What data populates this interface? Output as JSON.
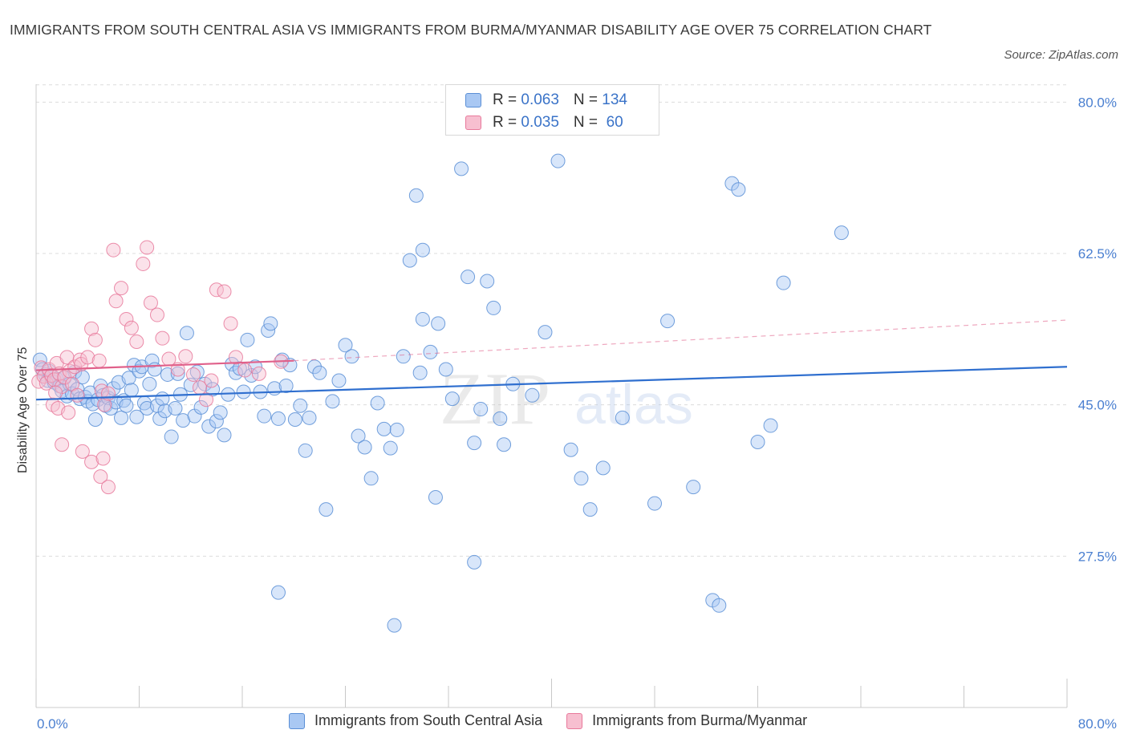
{
  "title": "IMMIGRANTS FROM SOUTH CENTRAL ASIA VS IMMIGRANTS FROM BURMA/MYANMAR DISABILITY AGE OVER 75 CORRELATION CHART",
  "source": "Source: ZipAtlas.com",
  "watermark": {
    "zip": "ZIP",
    "atlas": "atlas"
  },
  "legend": {
    "series1": {
      "r_label": "R = ",
      "r_value": "0.063",
      "n_label": "N = ",
      "n_value": "134"
    },
    "series2": {
      "r_label": "R = ",
      "r_value": "0.035",
      "n_label": "N = ",
      "n_value": " 60"
    }
  },
  "bottom_legend": {
    "series1": "Immigrants from South Central Asia",
    "series2": "Immigrants from Burma/Myanmar"
  },
  "colors": {
    "blue_fill": "#a9c8f3",
    "blue_stroke": "#5b8fd6",
    "blue_line": "#2f6fcf",
    "pink_fill": "#f7bfd0",
    "pink_stroke": "#e8799b",
    "pink_line": "#e0608a",
    "tick": "#4a7fd0",
    "grid": "#dcdcdc"
  },
  "chart_data": {
    "type": "scatter",
    "title": "IMMIGRANTS FROM SOUTH CENTRAL ASIA VS IMMIGRANTS FROM BURMA/MYANMAR DISABILITY AGE OVER 75 CORRELATION CHART",
    "xlabel": "",
    "ylabel": "Disability Age Over 75",
    "xlim": [
      0,
      80
    ],
    "ylim": [
      10,
      83
    ],
    "x_tick_labels": [
      "0.0%",
      "80.0%"
    ],
    "y_ticks": [
      27.5,
      45.0,
      62.5,
      80.0
    ],
    "y_tick_labels": [
      "27.5%",
      "45.0%",
      "62.5%",
      "80.0%"
    ],
    "grid": true,
    "series": [
      {
        "name": "Immigrants from South Central Asia",
        "R": 0.063,
        "N": 134,
        "trend": {
          "x0": 0,
          "y0": 45.6,
          "x1": 80,
          "y1": 49.4,
          "dashed_from": null
        },
        "points": [
          [
            0.3,
            50.2
          ],
          [
            0.5,
            49.1
          ],
          [
            0.7,
            48.5
          ],
          [
            0.9,
            47.8
          ],
          [
            1.0,
            48.9
          ],
          [
            1.2,
            48.3
          ],
          [
            1.4,
            47.6
          ],
          [
            1.6,
            48.0
          ],
          [
            1.8,
            47.2
          ],
          [
            2.0,
            46.6
          ],
          [
            2.2,
            48.1
          ],
          [
            2.4,
            46.0
          ],
          [
            2.6,
            47.4
          ],
          [
            2.8,
            46.3
          ],
          [
            3.0,
            48.8
          ],
          [
            3.2,
            46.8
          ],
          [
            3.4,
            45.7
          ],
          [
            3.6,
            48.2
          ],
          [
            3.8,
            45.9
          ],
          [
            4.0,
            45.4
          ],
          [
            4.2,
            46.4
          ],
          [
            4.4,
            45.1
          ],
          [
            4.6,
            43.3
          ],
          [
            4.8,
            45.6
          ],
          [
            5.0,
            47.2
          ],
          [
            5.2,
            46.1
          ],
          [
            5.4,
            44.9
          ],
          [
            5.6,
            45.8
          ],
          [
            5.8,
            44.6
          ],
          [
            6.0,
            46.9
          ],
          [
            6.2,
            45.3
          ],
          [
            6.4,
            47.6
          ],
          [
            6.6,
            43.5
          ],
          [
            6.8,
            45.5
          ],
          [
            7.0,
            44.9
          ],
          [
            7.2,
            48.1
          ],
          [
            7.4,
            46.7
          ],
          [
            7.6,
            49.6
          ],
          [
            7.8,
            43.6
          ],
          [
            8.0,
            48.9
          ],
          [
            8.2,
            49.4
          ],
          [
            8.4,
            45.2
          ],
          [
            8.6,
            44.6
          ],
          [
            8.8,
            47.4
          ],
          [
            9.0,
            50.1
          ],
          [
            9.2,
            49.1
          ],
          [
            9.4,
            44.9
          ],
          [
            9.6,
            43.4
          ],
          [
            9.8,
            45.7
          ],
          [
            10.0,
            44.3
          ],
          [
            10.2,
            48.5
          ],
          [
            10.5,
            41.3
          ],
          [
            10.8,
            44.6
          ],
          [
            11.0,
            48.6
          ],
          [
            11.2,
            46.2
          ],
          [
            11.4,
            43.2
          ],
          [
            11.7,
            53.3
          ],
          [
            12.0,
            47.3
          ],
          [
            12.3,
            43.7
          ],
          [
            12.5,
            48.8
          ],
          [
            12.8,
            44.7
          ],
          [
            13.1,
            47.4
          ],
          [
            13.4,
            42.5
          ],
          [
            13.7,
            46.8
          ],
          [
            14.0,
            43.1
          ],
          [
            14.3,
            44.1
          ],
          [
            14.6,
            41.5
          ],
          [
            14.9,
            46.2
          ],
          [
            15.2,
            49.7
          ],
          [
            15.5,
            48.7
          ],
          [
            15.8,
            49.2
          ],
          [
            16.1,
            46.5
          ],
          [
            16.4,
            52.5
          ],
          [
            16.7,
            48.4
          ],
          [
            17.0,
            49.4
          ],
          [
            17.4,
            46.5
          ],
          [
            17.7,
            43.7
          ],
          [
            18.0,
            53.6
          ],
          [
            18.2,
            54.4
          ],
          [
            18.5,
            46.9
          ],
          [
            18.8,
            43.4
          ],
          [
            19.1,
            50.2
          ],
          [
            19.4,
            47.2
          ],
          [
            19.7,
            49.6
          ],
          [
            20.1,
            43.3
          ],
          [
            20.5,
            44.9
          ],
          [
            20.9,
            39.7
          ],
          [
            21.2,
            43.5
          ],
          [
            21.6,
            49.4
          ],
          [
            22.0,
            48.7
          ],
          [
            22.5,
            32.9
          ],
          [
            23.0,
            45.4
          ],
          [
            23.5,
            47.8
          ],
          [
            24.0,
            51.9
          ],
          [
            24.5,
            50.6
          ],
          [
            25.0,
            41.4
          ],
          [
            25.5,
            40.1
          ],
          [
            26.0,
            36.5
          ],
          [
            26.5,
            45.2
          ],
          [
            27.0,
            42.2
          ],
          [
            27.5,
            40.0
          ],
          [
            28.0,
            42.1
          ],
          [
            28.5,
            50.6
          ],
          [
            29.0,
            61.7
          ],
          [
            29.5,
            69.2
          ],
          [
            30.0,
            54.9
          ],
          [
            30.6,
            51.1
          ],
          [
            31.2,
            54.4
          ],
          [
            31.8,
            49.1
          ],
          [
            32.3,
            45.7
          ],
          [
            33.0,
            72.3
          ],
          [
            33.5,
            59.8
          ],
          [
            34.0,
            40.6
          ],
          [
            34.5,
            44.5
          ],
          [
            35.0,
            59.3
          ],
          [
            35.5,
            56.2
          ],
          [
            36.0,
            43.4
          ],
          [
            37.0,
            47.4
          ],
          [
            38.5,
            46.1
          ],
          [
            39.5,
            53.4
          ],
          [
            40.5,
            73.2
          ],
          [
            41.5,
            39.8
          ],
          [
            43.0,
            32.9
          ],
          [
            44.0,
            37.7
          ],
          [
            45.5,
            43.5
          ],
          [
            48.0,
            33.6
          ],
          [
            49.0,
            54.7
          ],
          [
            51.0,
            35.5
          ],
          [
            52.5,
            22.4
          ],
          [
            53.0,
            21.8
          ],
          [
            54.0,
            70.6
          ],
          [
            54.5,
            69.9
          ],
          [
            56.0,
            40.7
          ],
          [
            57.0,
            42.6
          ],
          [
            58.0,
            59.1
          ],
          [
            62.5,
            64.9
          ],
          [
            30.0,
            62.9
          ],
          [
            34.0,
            26.8
          ],
          [
            31.0,
            34.3
          ],
          [
            18.8,
            23.3
          ],
          [
            27.8,
            19.5
          ],
          [
            42.3,
            36.5
          ],
          [
            36.3,
            40.4
          ],
          [
            29.8,
            48.7
          ]
        ]
      },
      {
        "name": "Immigrants from Burma/Myanmar",
        "R": 0.035,
        "N": 60,
        "trend": {
          "x0": 0,
          "y0": 49.0,
          "x1": 20,
          "y1": 50.1,
          "dashed_from": 20,
          "x_end": 80,
          "y_end": 54.8
        },
        "points": [
          [
            0.2,
            47.7
          ],
          [
            0.4,
            49.3
          ],
          [
            0.6,
            48.3
          ],
          [
            0.8,
            47.5
          ],
          [
            1.0,
            49.1
          ],
          [
            1.2,
            48.4
          ],
          [
            1.4,
            47.9
          ],
          [
            1.6,
            49.8
          ],
          [
            1.8,
            48.6
          ],
          [
            2.0,
            47.1
          ],
          [
            2.2,
            48.2
          ],
          [
            2.4,
            50.5
          ],
          [
            2.6,
            48.9
          ],
          [
            2.8,
            47.4
          ],
          [
            3.0,
            49.4
          ],
          [
            3.2,
            46.1
          ],
          [
            3.4,
            50.2
          ],
          [
            1.3,
            45.0
          ],
          [
            1.5,
            46.4
          ],
          [
            1.7,
            44.6
          ],
          [
            2.5,
            44.1
          ],
          [
            3.5,
            49.7
          ],
          [
            4.0,
            50.5
          ],
          [
            4.3,
            53.8
          ],
          [
            4.6,
            52.5
          ],
          [
            4.9,
            50.1
          ],
          [
            5.1,
            46.6
          ],
          [
            5.3,
            45.0
          ],
          [
            5.6,
            46.3
          ],
          [
            6.0,
            62.9
          ],
          [
            6.2,
            57.0
          ],
          [
            6.6,
            58.5
          ],
          [
            7.0,
            54.9
          ],
          [
            7.4,
            53.9
          ],
          [
            7.8,
            52.3
          ],
          [
            8.3,
            61.3
          ],
          [
            8.6,
            63.2
          ],
          [
            8.9,
            56.8
          ],
          [
            9.4,
            55.4
          ],
          [
            9.8,
            52.7
          ],
          [
            10.3,
            50.3
          ],
          [
            11.0,
            49.1
          ],
          [
            11.6,
            50.6
          ],
          [
            12.2,
            48.5
          ],
          [
            12.7,
            47.0
          ],
          [
            13.2,
            45.6
          ],
          [
            13.6,
            47.8
          ],
          [
            14.0,
            58.3
          ],
          [
            14.6,
            58.1
          ],
          [
            15.1,
            54.4
          ],
          [
            15.5,
            50.5
          ],
          [
            16.2,
            49.0
          ],
          [
            17.3,
            48.6
          ],
          [
            19.0,
            50.0
          ],
          [
            2.0,
            40.4
          ],
          [
            3.6,
            39.6
          ],
          [
            4.3,
            38.4
          ],
          [
            5.0,
            36.7
          ],
          [
            5.6,
            35.5
          ],
          [
            5.2,
            38.8
          ]
        ]
      }
    ]
  }
}
